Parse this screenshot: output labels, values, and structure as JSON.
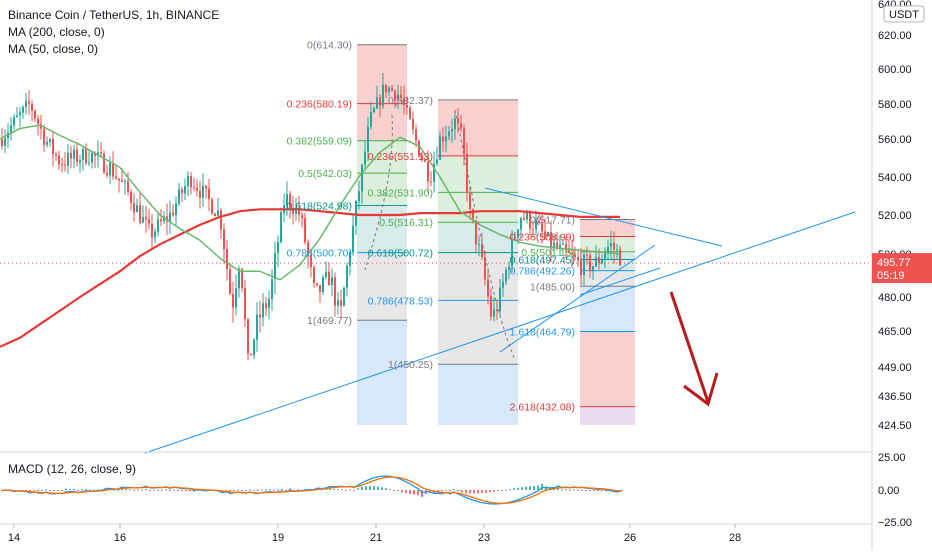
{
  "header": {
    "symbol_line": "Binance Coin / TetherUS, 1h, BINANCE",
    "ma200_label": "MA (200, close, 0)",
    "ma50_label": "MA (50, close, 0)",
    "macd_label": "MACD (12, 26, close, 9)"
  },
  "price_scale": {
    "currency": "USDT",
    "last_price": "495.77",
    "countdown": "05:19",
    "ticks": [
      "640.00",
      "620.00",
      "600.00",
      "580.00",
      "560.00",
      "540.00",
      "520.00",
      "500.00",
      "480.00",
      "465.00",
      "449.00",
      "436.50",
      "424.50"
    ],
    "macd_ticks": [
      "25.00",
      "0.00",
      "−25.00"
    ]
  },
  "time_scale": {
    "ticks": [
      "14",
      "16",
      "19",
      "21",
      "23",
      "26",
      "28"
    ]
  },
  "colors": {
    "candle_up": "#26a69a",
    "candle_down": "#ef5350",
    "ma200": "#e53935",
    "ma50": "#66bb6a",
    "trendline": "#2196f3",
    "arrow": "#b71c1c",
    "macd": "#2196f3",
    "signal": "#ff6d00"
  },
  "chart_data": {
    "type": "candlestick",
    "symbol": "BNBUSDT",
    "interval": "1h",
    "y_range": [
      420,
      640
    ],
    "last_price": 495.77,
    "series": [
      {
        "name": "MA (200, close, 0)",
        "x": [
          0,
          20,
          40,
          60,
          80,
          100,
          120,
          140,
          160,
          180,
          200,
          220,
          240,
          260,
          280,
          300,
          320,
          340,
          360,
          380,
          400,
          420,
          440,
          460,
          480,
          500,
          520,
          540,
          560,
          580,
          600,
          620
        ],
        "values": [
          458,
          462,
          468,
          474,
          480,
          486,
          492,
          499,
          505,
          510,
          515,
          519,
          522,
          523,
          523,
          523,
          522,
          521,
          520,
          520,
          520,
          521,
          521,
          521,
          522,
          522,
          522,
          521,
          520,
          519,
          519,
          519
        ]
      },
      {
        "name": "MA (50, close, 0)",
        "x": [
          0,
          20,
          40,
          60,
          80,
          100,
          120,
          140,
          160,
          180,
          200,
          220,
          240,
          260,
          280,
          300,
          320,
          340,
          360,
          380,
          400,
          420,
          440,
          460,
          480,
          500,
          520,
          540,
          560,
          580,
          600,
          620
        ],
        "values": [
          560,
          566,
          568,
          562,
          557,
          551,
          545,
          532,
          520,
          513,
          507,
          498,
          492,
          492,
          488,
          495,
          508,
          525,
          541,
          553,
          561,
          556,
          540,
          522,
          515,
          510,
          506,
          504,
          503,
          502,
          501,
          500
        ]
      }
    ],
    "fib_retracements": [
      {
        "levels": [
          {
            "label": "0(614.30)",
            "value": 614.3
          },
          {
            "label": "0.236(580.19)",
            "value": 580.19
          },
          {
            "label": "0.382(559.09)",
            "value": 559.09
          },
          {
            "label": "0.5(542.03)",
            "value": 542.03
          },
          {
            "label": "0.618(524.98)",
            "value": 524.98
          },
          {
            "label": "0.786(500.70)",
            "value": 500.7
          },
          {
            "label": "1(469.77)",
            "value": 469.77
          }
        ]
      },
      {
        "levels": [
          {
            "label": "0(582.37)",
            "value": 582.37
          },
          {
            "label": "0.236(551.13)",
            "value": 551.13
          },
          {
            "label": "0.382(531.90)",
            "value": 531.9
          },
          {
            "label": "0.5(516.31)",
            "value": 516.31
          },
          {
            "label": "0.618(500.72)",
            "value": 500.72
          },
          {
            "label": "0.786(478.53)",
            "value": 478.53
          },
          {
            "label": "1(450.25)",
            "value": 450.25
          }
        ]
      },
      {
        "levels": [
          {
            "label": "0(517.71)",
            "value": 517.71
          },
          {
            "label": "0.236(508.99)",
            "value": 508.99
          },
          {
            "label": "0.5(501.15)",
            "value": 501.15
          },
          {
            "label": "0.618(497.45)",
            "value": 497.45
          },
          {
            "label": "0.786(492.26)",
            "value": 492.26
          },
          {
            "label": "1(485.00)",
            "value": 485.0
          },
          {
            "label": "1.618(464.79)",
            "value": 464.79
          },
          {
            "label": "2.618(432.08)",
            "value": 432.08
          }
        ]
      }
    ]
  }
}
